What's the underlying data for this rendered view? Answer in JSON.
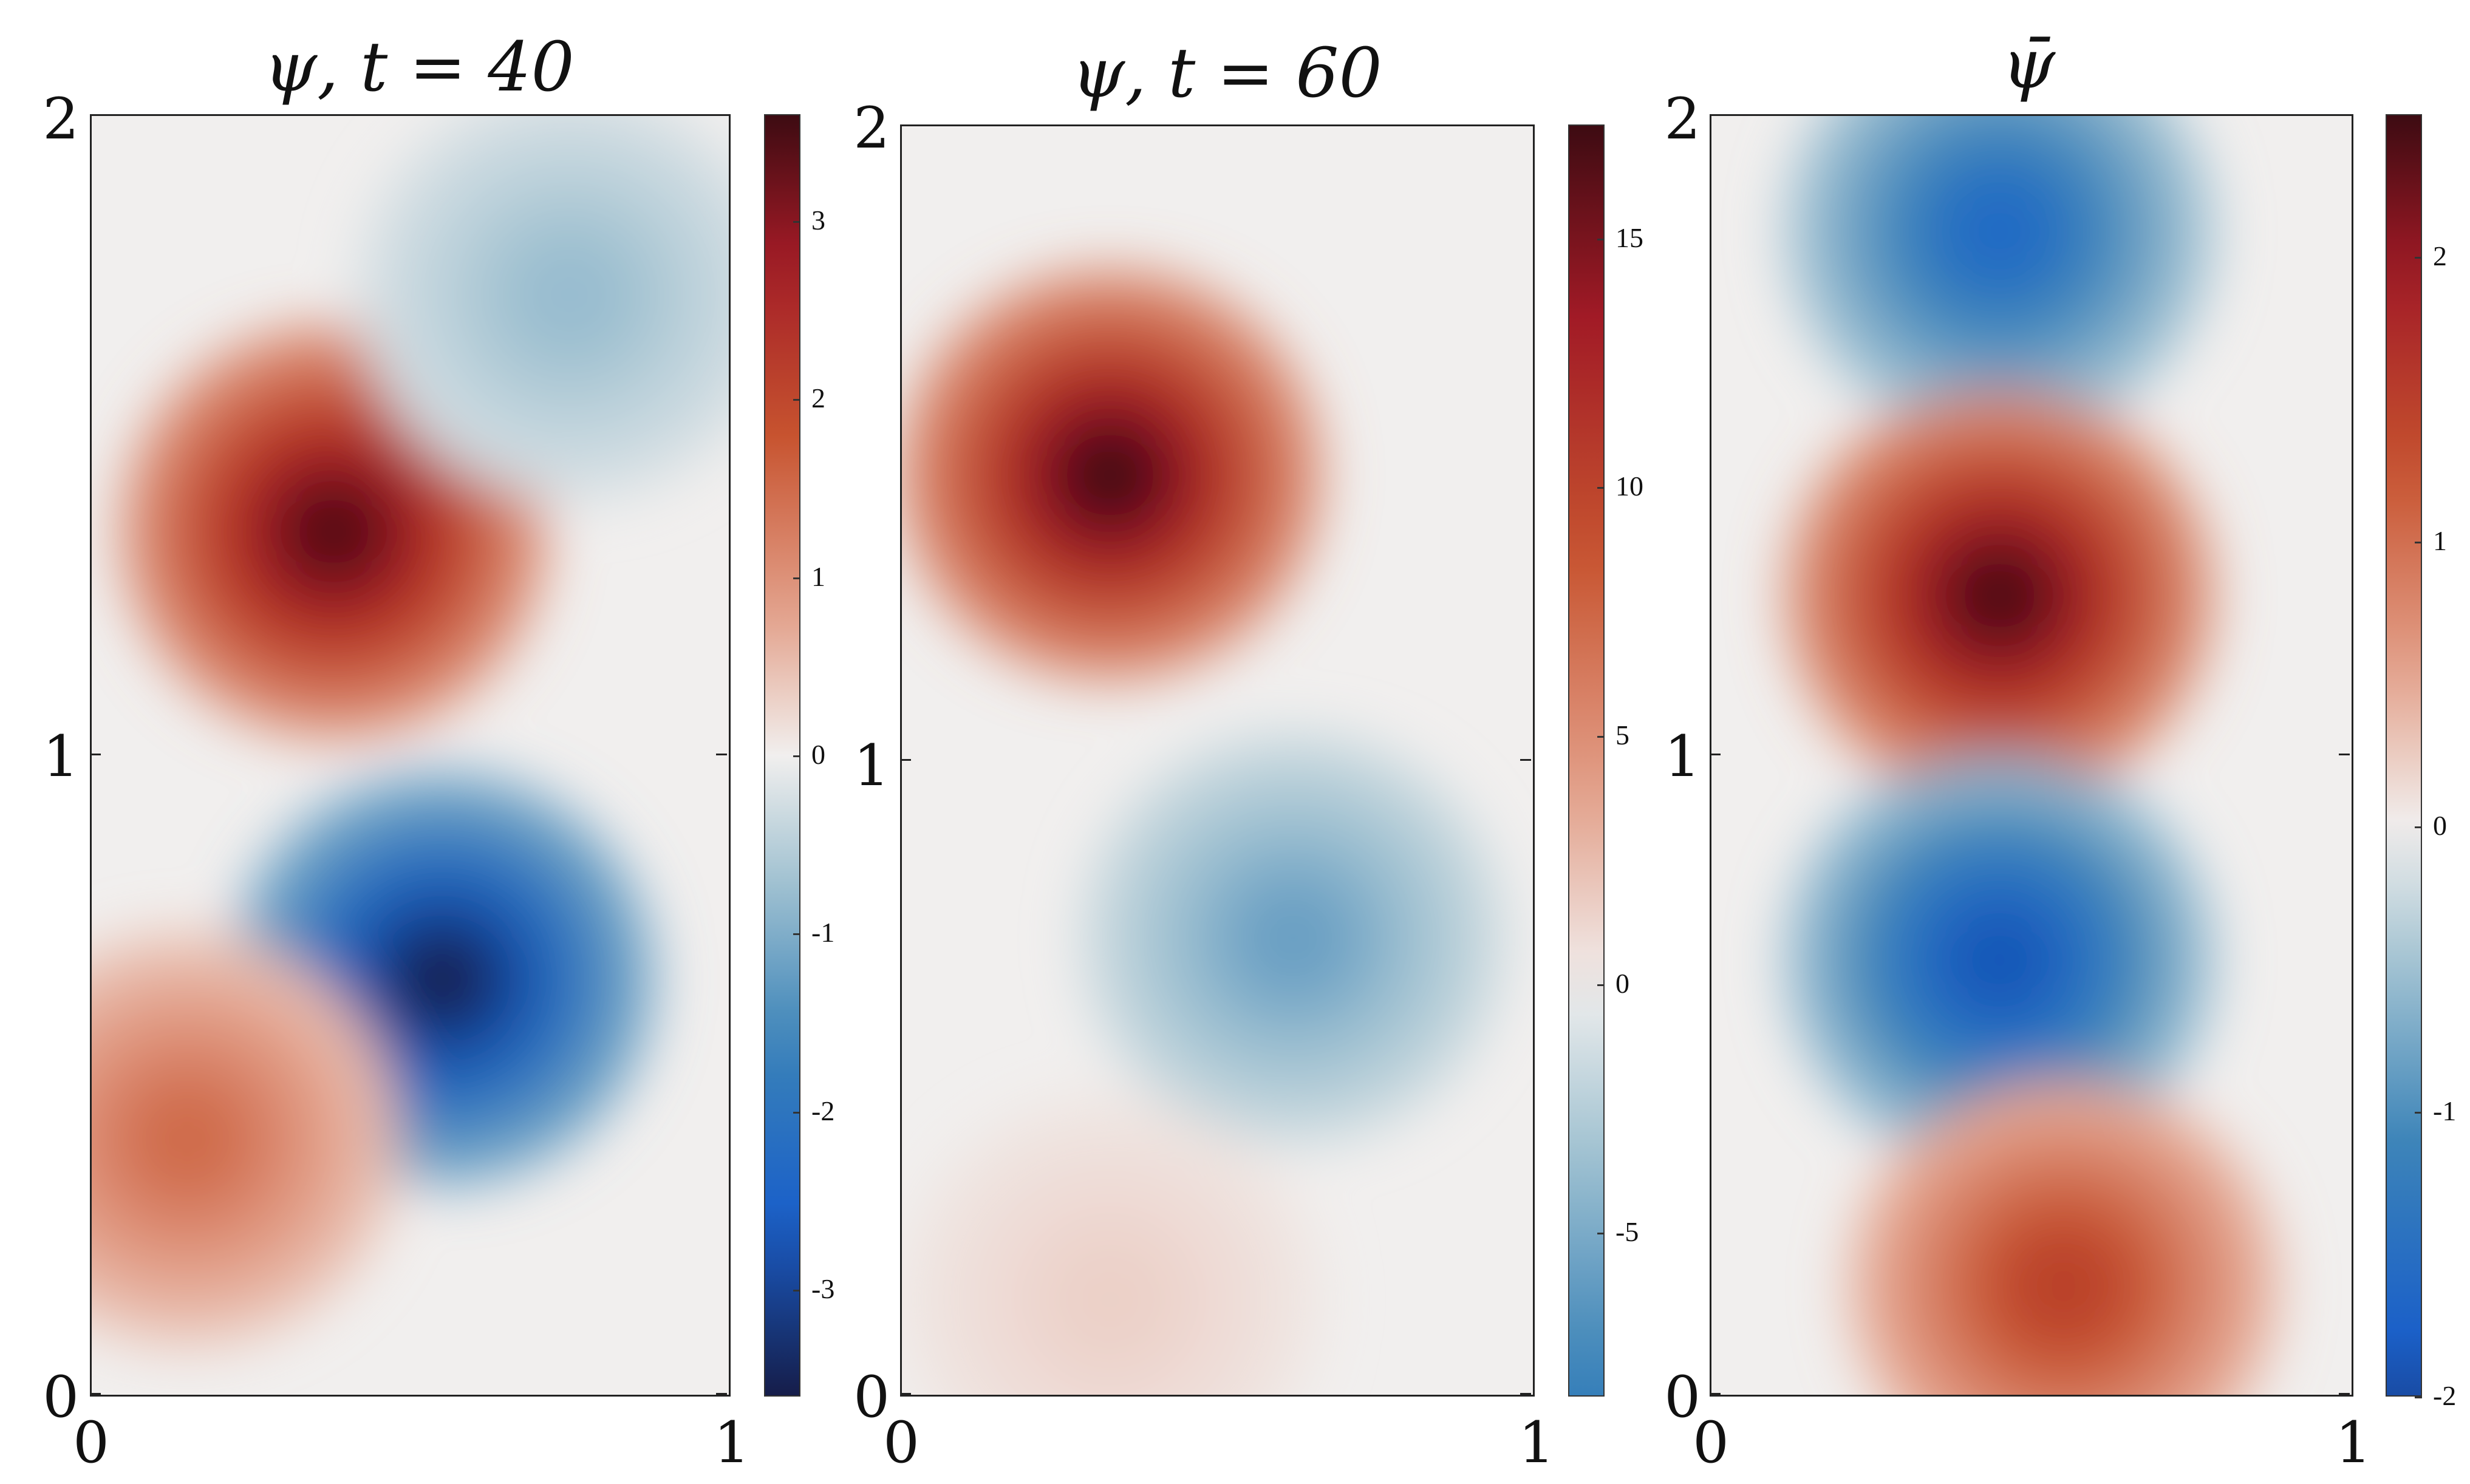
{
  "chart_data": [
    {
      "type": "heatmap",
      "title": "ψ, t = 40",
      "xlim": [
        0,
        1
      ],
      "ylim": [
        0,
        2
      ],
      "x_ticks": [
        "0",
        "1"
      ],
      "y_ticks": [
        "0",
        "1",
        "2"
      ],
      "colorbar": {
        "ticks": [
          "-3",
          "-2",
          "-1",
          "0",
          "1",
          "2",
          "3"
        ],
        "range": [
          -3.6,
          3.6
        ]
      },
      "field_features": [
        {
          "kind": "max",
          "x": 0.38,
          "y": 1.35,
          "value": 3.4
        },
        {
          "kind": "min",
          "x": 0.55,
          "y": 0.65,
          "value": -3.5
        },
        {
          "kind": "max",
          "x": 0.15,
          "y": 0.4,
          "value": 1.5
        },
        {
          "kind": "min",
          "x": 0.75,
          "y": 1.72,
          "value": -0.8
        }
      ]
    },
    {
      "type": "heatmap",
      "title": "ψ, t = 60",
      "xlim": [
        0,
        1
      ],
      "ylim": [
        0,
        2
      ],
      "x_ticks": [
        "0",
        "1"
      ],
      "y_ticks": [
        "0",
        "1",
        "2"
      ],
      "colorbar": {
        "ticks": [
          "-5",
          "0",
          "5",
          "10",
          "15"
        ],
        "range": [
          -8.3,
          17.3
        ]
      },
      "field_features": [
        {
          "kind": "max",
          "x": 0.33,
          "y": 1.45,
          "value": 17
        },
        {
          "kind": "min",
          "x": 0.62,
          "y": 0.72,
          "value": -5.8
        },
        {
          "kind": "max",
          "x": 0.33,
          "y": 0.15,
          "value": 1.5
        }
      ]
    },
    {
      "type": "heatmap",
      "title": "ψ̄",
      "xlim": [
        0,
        1
      ],
      "ylim": [
        0,
        2
      ],
      "x_ticks": [
        "0",
        "1"
      ],
      "y_ticks": [
        "0",
        "1",
        "2"
      ],
      "colorbar": {
        "ticks": [
          "-2",
          "-1",
          "0",
          "1",
          "2"
        ],
        "range": [
          -2.0,
          2.5
        ]
      },
      "field_features": [
        {
          "kind": "min",
          "x": 0.45,
          "y": 1.82,
          "value": -1.6
        },
        {
          "kind": "max",
          "x": 0.45,
          "y": 1.25,
          "value": 2.4
        },
        {
          "kind": "min",
          "x": 0.45,
          "y": 0.68,
          "value": -1.9
        },
        {
          "kind": "max",
          "x": 0.55,
          "y": 0.17,
          "value": 1.5
        }
      ]
    }
  ],
  "colors": {
    "deep_red": "#3d0b12",
    "red": "#a11a26",
    "orange_red": "#c7532f",
    "light_red": "#e3a18b",
    "neutral": "#f1efee",
    "light_blue": "#a8c6d3",
    "blue": "#3a83b8",
    "strong_blue": "#1a5fc9",
    "deep_blue": "#161d4a"
  }
}
